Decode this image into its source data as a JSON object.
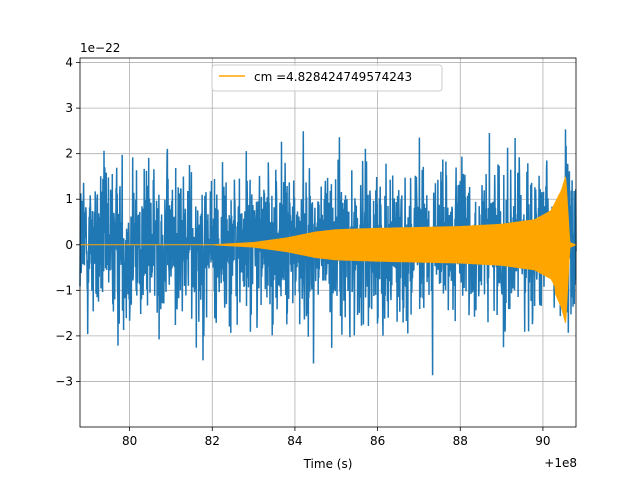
{
  "chart_data": {
    "type": "line",
    "title": "",
    "xlabel": "Time (s)",
    "ylabel": "",
    "x_offset_label": "+1e8",
    "y_scale_label": "1e−22",
    "xlim": [
      78.8,
      90.8
    ],
    "ylim": [
      -4.0,
      4.1
    ],
    "x_ticks": [
      80,
      82,
      84,
      86,
      88,
      90
    ],
    "x_tick_labels": [
      "80",
      "82",
      "84",
      "86",
      "88",
      "90"
    ],
    "y_ticks": [
      -3,
      -2,
      -1,
      0,
      1,
      2,
      3,
      4
    ],
    "y_tick_labels": [
      "−3",
      "−2",
      "−1",
      "0",
      "1",
      "2",
      "3",
      "4"
    ],
    "grid": true,
    "legend_position": "top-center",
    "series": [
      {
        "name": "",
        "color": "#1f77b4",
        "description_values": {
          "x_start": 78.8,
          "x_end": 90.8,
          "typical_amplitude": 1.0,
          "peak_amplitude_pos": 3.4,
          "peak_amplitude_neg": -3.6
        }
      },
      {
        "name": "cm =4.828424749574243",
        "color": "#ffa500",
        "envelope": {
          "x": [
            78.8,
            82.0,
            83.0,
            83.8,
            84.5,
            85.0,
            86.0,
            87.0,
            88.0,
            89.0,
            89.8,
            90.2,
            90.45,
            90.55,
            90.65,
            90.8
          ],
          "y": [
            0.0,
            0.0,
            0.05,
            0.15,
            0.28,
            0.33,
            0.36,
            0.38,
            0.4,
            0.45,
            0.55,
            0.75,
            1.2,
            1.5,
            0.05,
            0.0
          ]
        }
      }
    ]
  }
}
